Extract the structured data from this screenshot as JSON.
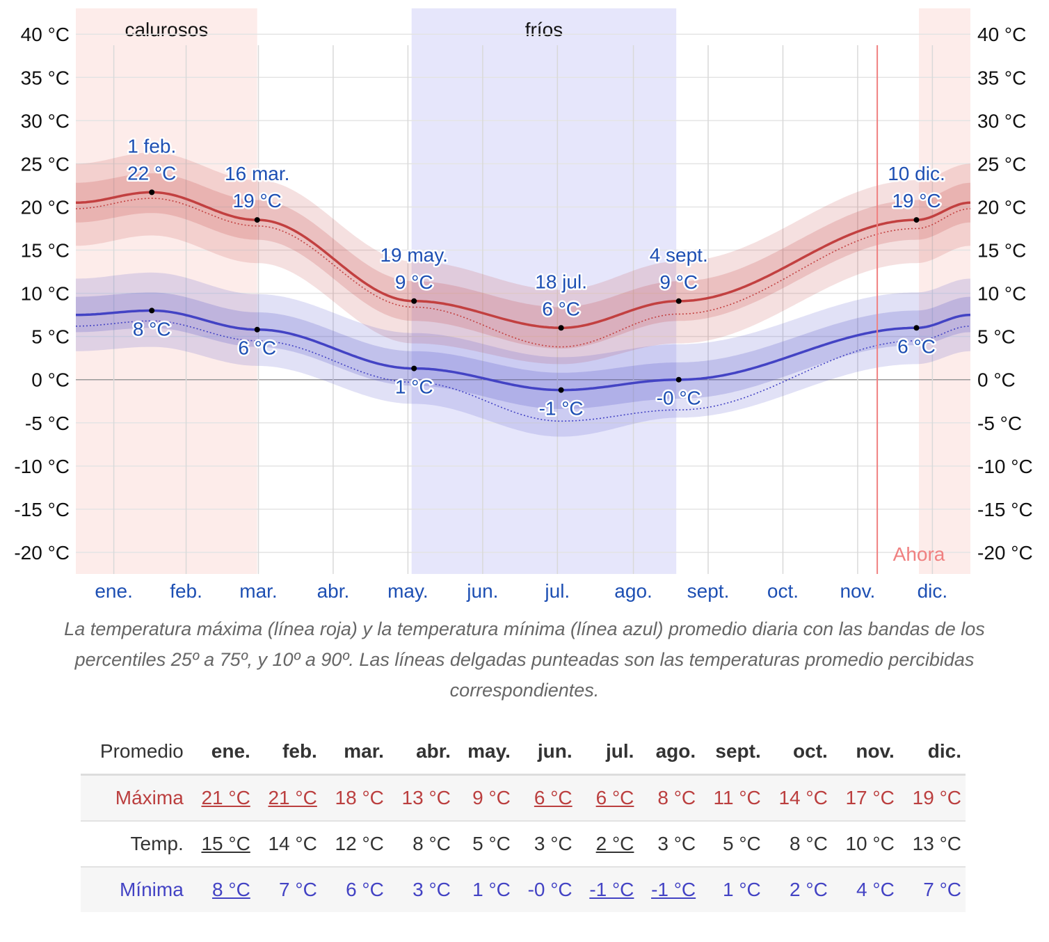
{
  "chart_data": {
    "type": "line",
    "y_axis": {
      "ylim": [
        -22.5,
        43
      ],
      "ticks": [
        40,
        35,
        30,
        25,
        20,
        15,
        10,
        5,
        0,
        -5,
        -10,
        -15,
        -20
      ],
      "tick_labels": [
        "40 °C",
        "35 °C",
        "30 °C",
        "25 °C",
        "20 °C",
        "15 °C",
        "10 °C",
        "5 °C",
        "0 °C",
        "-5 °C",
        "-10 °C",
        "-15 °C",
        "-20 °C"
      ]
    },
    "x_axis": {
      "day_range": [
        0,
        365
      ],
      "month_labels": [
        "ene.",
        "feb.",
        "mar.",
        "abr.",
        "may.",
        "jun.",
        "jul.",
        "ago.",
        "sept.",
        "oct.",
        "nov.",
        "dic."
      ],
      "month_starts": [
        0,
        31,
        59,
        90,
        120,
        151,
        181,
        212,
        243,
        273,
        304,
        334
      ]
    },
    "seasons": [
      {
        "label": "calurosos",
        "start_day": 0,
        "end_day": 74,
        "color": "#fdecea",
        "wrap_start_day": 344
      },
      {
        "label": "fríos",
        "start_day": 137,
        "end_day": 245,
        "color": "#e6e6fb"
      }
    ],
    "now": {
      "label": "Ahora",
      "day": 327
    },
    "series": [
      {
        "name": "Máxima",
        "color": "#c24040",
        "key_days": [
          0,
          31,
          74,
          138,
          198,
          246,
          343,
          365
        ],
        "mean": [
          20.5,
          21.7,
          18.5,
          9.1,
          6.0,
          9.1,
          18.5,
          20.5
        ],
        "feels": [
          19.8,
          21.0,
          17.8,
          8.4,
          3.8,
          7.6,
          17.5,
          19.8
        ],
        "p25": [
          18.2,
          19.3,
          16.2,
          6.8,
          3.6,
          6.8,
          16.2,
          18.2
        ],
        "p75": [
          22.8,
          23.9,
          20.8,
          11.4,
          8.4,
          11.4,
          20.8,
          22.8
        ],
        "p10": [
          15.5,
          16.7,
          13.5,
          4.2,
          1.8,
          4.2,
          13.5,
          15.5
        ],
        "p90": [
          25.0,
          26.3,
          23.1,
          13.7,
          10.4,
          13.7,
          23.1,
          25.0
        ]
      },
      {
        "name": "Mínima",
        "color": "#4343c4",
        "key_days": [
          0,
          31,
          74,
          138,
          198,
          246,
          343,
          365
        ],
        "mean": [
          7.5,
          8.0,
          5.8,
          1.3,
          -1.2,
          0.0,
          6.0,
          7.5
        ],
        "feels": [
          6.2,
          6.8,
          4.5,
          -0.3,
          -4.8,
          -3.5,
          4.5,
          6.2
        ],
        "p25": [
          5.5,
          6.0,
          3.8,
          -0.7,
          -3.4,
          -2.2,
          4.0,
          5.5
        ],
        "p75": [
          9.6,
          10.1,
          7.8,
          3.3,
          0.8,
          2.0,
          8.0,
          9.6
        ],
        "p10": [
          3.3,
          3.8,
          1.6,
          -2.8,
          -6.6,
          -4.4,
          1.8,
          3.3
        ],
        "p90": [
          11.7,
          12.4,
          9.9,
          5.4,
          2.6,
          4.1,
          10.1,
          11.7
        ]
      }
    ],
    "annotations": [
      {
        "day": 31,
        "value": 21.7,
        "series": "Máxima",
        "date": "1 feb.",
        "text": "22 °C"
      },
      {
        "day": 74,
        "value": 18.5,
        "series": "Máxima",
        "date": "16 mar.",
        "text": "19 °C"
      },
      {
        "day": 138,
        "value": 9.1,
        "series": "Máxima",
        "date": "19 may.",
        "text": "9 °C"
      },
      {
        "day": 198,
        "value": 6.0,
        "series": "Máxima",
        "date": "18 jul.",
        "text": "6 °C"
      },
      {
        "day": 246,
        "value": 9.1,
        "series": "Máxima",
        "date": "4 sept.",
        "text": "9 °C"
      },
      {
        "day": 343,
        "value": 18.5,
        "series": "Máxima",
        "date": "10 dic.",
        "text": "19 °C"
      },
      {
        "day": 31,
        "value": 8.0,
        "series": "Mínima",
        "text": "8 °C"
      },
      {
        "day": 74,
        "value": 5.8,
        "series": "Mínima",
        "text": "6 °C"
      },
      {
        "day": 138,
        "value": 1.3,
        "series": "Mínima",
        "text": "1 °C"
      },
      {
        "day": 198,
        "value": -1.2,
        "series": "Mínima",
        "text": "-1 °C"
      },
      {
        "day": 246,
        "value": 0.0,
        "series": "Mínima",
        "text": "-0 °C"
      },
      {
        "day": 343,
        "value": 6.0,
        "series": "Mínima",
        "text": "6 °C"
      }
    ]
  },
  "caption": "La temperatura máxima (línea roja) y la temperatura mínima (línea azul) promedio diaria con las bandas de los percentiles 25º a 75º, y 10º a 90º. Las líneas delgadas punteadas son las temperaturas promedio percibidas correspondientes.",
  "table": {
    "header": "Promedio",
    "months": [
      "ene.",
      "feb.",
      "mar.",
      "abr.",
      "may.",
      "jun.",
      "jul.",
      "ago.",
      "sept.",
      "oct.",
      "nov.",
      "dic."
    ],
    "rows": [
      {
        "label": "Máxima",
        "class": "row-max",
        "values": [
          "21 °C",
          "21 °C",
          "18 °C",
          "13 °C",
          "9 °C",
          "6 °C",
          "6 °C",
          "8 °C",
          "11 °C",
          "14 °C",
          "17 °C",
          "19 °C"
        ],
        "underlined": [
          0,
          1,
          5,
          6
        ]
      },
      {
        "label": "Temp.",
        "class": "row-temp",
        "values": [
          "15 °C",
          "14 °C",
          "12 °C",
          "8 °C",
          "5 °C",
          "3 °C",
          "2 °C",
          "3 °C",
          "5 °C",
          "8 °C",
          "10 °C",
          "13 °C"
        ],
        "underlined": [
          0,
          6
        ]
      },
      {
        "label": "Mínima",
        "class": "row-min",
        "values": [
          "8 °C",
          "7 °C",
          "6 °C",
          "3 °C",
          "1 °C",
          "-0 °C",
          "-1 °C",
          "-1 °C",
          "1 °C",
          "2 °C",
          "4 °C",
          "7 °C"
        ],
        "underlined": [
          0,
          6,
          7
        ]
      }
    ]
  }
}
